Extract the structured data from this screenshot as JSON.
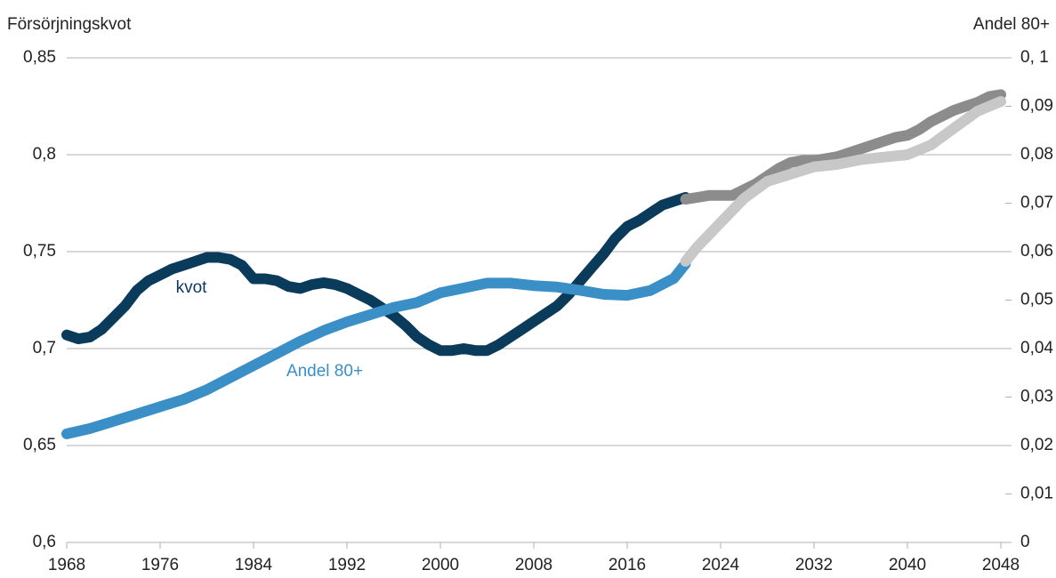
{
  "chart_data": {
    "type": "line",
    "ylabel": "Försörjningskvot",
    "y2label": "Andel 80+",
    "xlim": [
      1968,
      2048
    ],
    "xticks": [
      1968,
      1976,
      1984,
      1992,
      2000,
      2008,
      2016,
      2024,
      2032,
      2040,
      2048
    ],
    "ylim": [
      0.6,
      0.85
    ],
    "yticks": [
      {
        "value": 0.6,
        "label": "0,6"
      },
      {
        "value": 0.65,
        "label": "0,65"
      },
      {
        "value": 0.7,
        "label": "0,7"
      },
      {
        "value": 0.75,
        "label": "0,75"
      },
      {
        "value": 0.8,
        "label": "0,8"
      },
      {
        "value": 0.85,
        "label": "0,85"
      }
    ],
    "y2lim": [
      0,
      0.1
    ],
    "y2ticks": [
      0,
      {
        "value": 0.01,
        "label": "0,01"
      },
      {
        "value": 0.02,
        "label": "0,02"
      },
      {
        "value": 0.03,
        "label": "0,03"
      },
      {
        "value": 0.04,
        "label": "0,04"
      },
      {
        "value": 0.05,
        "label": "0,05"
      },
      {
        "value": 0.06,
        "label": "0,06"
      },
      {
        "value": 0.07,
        "label": "0,07"
      },
      {
        "value": 0.08,
        "label": "0,08"
      },
      {
        "value": 0.09,
        "label": "0,09"
      },
      {
        "value": 0.1,
        "label": "0, 1"
      }
    ],
    "grid": true,
    "series": [
      {
        "name": "kvot",
        "color": "#0b3b5b",
        "x": [
          1968,
          1969,
          1970,
          1971,
          1972,
          1973,
          1974,
          1975,
          1976,
          1977,
          1978,
          1979,
          1980,
          1981,
          1982,
          1983,
          1984,
          1985,
          1986,
          1987,
          1988,
          1989,
          1990,
          1991,
          1992,
          1993,
          1994,
          1995,
          1996,
          1997,
          1998,
          1999,
          2000,
          2001,
          2002,
          2003,
          2004,
          2005,
          2006,
          2007,
          2008,
          2009,
          2010,
          2011,
          2012,
          2013,
          2014,
          2015,
          2016,
          2017,
          2018,
          2019,
          2020,
          2021
        ],
        "values": [
          0.707,
          0.705,
          0.706,
          0.71,
          0.716,
          0.722,
          0.73,
          0.735,
          0.738,
          0.741,
          0.743,
          0.745,
          0.747,
          0.747,
          0.746,
          0.743,
          0.736,
          0.736,
          0.735,
          0.732,
          0.731,
          0.733,
          0.734,
          0.733,
          0.731,
          0.728,
          0.725,
          0.721,
          0.717,
          0.712,
          0.706,
          0.702,
          0.699,
          0.699,
          0.7,
          0.699,
          0.699,
          0.702,
          0.706,
          0.71,
          0.714,
          0.718,
          0.722,
          0.728,
          0.735,
          0.742,
          0.749,
          0.757,
          0.763,
          0.766,
          0.77,
          0.774,
          0.776,
          0.778
        ]
      },
      {
        "name": "Andel 80+",
        "color": "#3a8fc6",
        "axis": "y2",
        "x": [
          1968,
          1970,
          1972,
          1974,
          1976,
          1978,
          1980,
          1982,
          1984,
          1986,
          1988,
          1990,
          1992,
          1994,
          1996,
          1998,
          2000,
          2002,
          2004,
          2006,
          2008,
          2010,
          2012,
          2014,
          2016,
          2018,
          2020,
          2021
        ],
        "values": [
          0.0224,
          0.0235,
          0.025,
          0.0265,
          0.028,
          0.0295,
          0.0315,
          0.034,
          0.0365,
          0.039,
          0.0415,
          0.0437,
          0.0455,
          0.047,
          0.0485,
          0.0495,
          0.0515,
          0.0525,
          0.0535,
          0.0535,
          0.053,
          0.0527,
          0.052,
          0.0512,
          0.051,
          0.052,
          0.0545,
          0.0575
        ]
      },
      {
        "color": "#8c8c8c",
        "x": [
          2021,
          2022,
          2023,
          2024,
          2025,
          2026,
          2027,
          2028,
          2029,
          2030,
          2031,
          2032,
          2033,
          2034,
          2035,
          2036,
          2037,
          2038,
          2039,
          2040,
          2041,
          2042,
          2043,
          2044,
          2045,
          2046,
          2047,
          2048
        ],
        "values": [
          0.777,
          0.778,
          0.779,
          0.779,
          0.779,
          0.782,
          0.785,
          0.789,
          0.793,
          0.796,
          0.797,
          0.797,
          0.798,
          0.799,
          0.801,
          0.803,
          0.805,
          0.807,
          0.809,
          0.81,
          0.813,
          0.817,
          0.82,
          0.823,
          0.825,
          0.827,
          0.83,
          0.831
        ]
      },
      {
        "color": "#c8c8c8",
        "axis": "y2",
        "x": [
          2021,
          2022,
          2024,
          2026,
          2028,
          2030,
          2032,
          2034,
          2036,
          2038,
          2040,
          2042,
          2044,
          2046,
          2048
        ],
        "values": [
          0.058,
          0.061,
          0.066,
          0.071,
          0.0745,
          0.076,
          0.0775,
          0.078,
          0.079,
          0.0795,
          0.08,
          0.082,
          0.0855,
          0.089,
          0.091
        ]
      }
    ]
  }
}
